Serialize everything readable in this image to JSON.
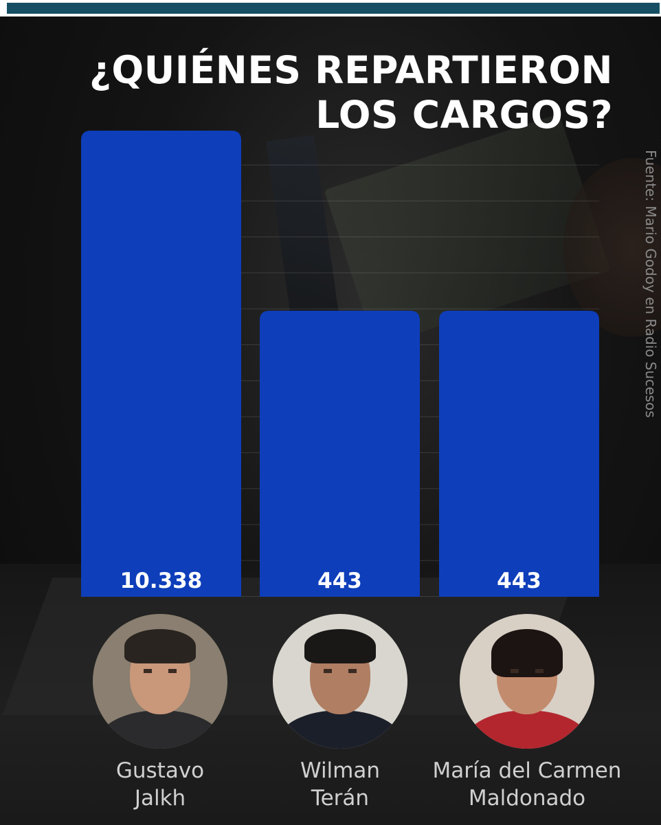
{
  "title": "¿QUIÉNES REPARTIERON LOS CARGOS?",
  "source": "Fuente: Mario Godoy en Radio Sucesos",
  "colors": {
    "bar": "#0e3eba",
    "title": "#ffffff",
    "value_label": "#ffffff",
    "topbar": "#164f63"
  },
  "chart_data": {
    "type": "bar",
    "categories": [
      "Gustavo Jalkh",
      "Wilman Terán",
      "María del Carmen Maldonado"
    ],
    "values": [
      10338,
      443,
      443
    ],
    "value_labels": [
      "10.338",
      "443",
      "443"
    ],
    "grid": true,
    "legend": "none",
    "note": "axis is broken: bars are not drawn to scale"
  },
  "people": [
    {
      "first": "Gustavo",
      "last": "Jalkh",
      "avatar_icon": "portrait-photo"
    },
    {
      "first": "Wilman",
      "last": "Terán",
      "avatar_icon": "portrait-photo"
    },
    {
      "first": "María del Carmen",
      "last": "Maldonado",
      "avatar_icon": "portrait-photo"
    }
  ]
}
